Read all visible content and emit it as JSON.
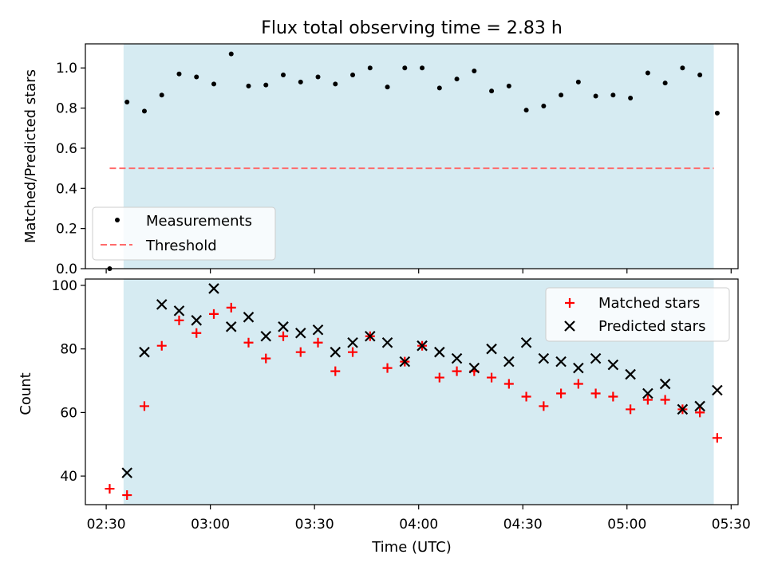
{
  "title": "Flux total observing time = 2.83 h",
  "colors": {
    "band": "#add8e6",
    "threshold": "#ff6b6b",
    "matched": "#ff0000",
    "predicted": "#000000",
    "measurement": "#000000"
  },
  "chart_data": [
    {
      "type": "scatter",
      "ylabel": "Matched/Predicted stars",
      "ylim": [
        0,
        1.12
      ],
      "yticks": [
        "0.0",
        "0.2",
        "0.4",
        "0.6",
        "0.8",
        "1.0"
      ],
      "xlim": [
        "02:24",
        "05:32"
      ],
      "shaded_interval": [
        "02:35",
        "05:25"
      ],
      "legend": {
        "placement": "lower-left",
        "entries": [
          "Measurements",
          "Threshold"
        ]
      },
      "threshold": {
        "name": "Threshold",
        "value": 0.5,
        "x_start": "02:31",
        "x_end": "05:25"
      },
      "series": [
        {
          "name": "Measurements",
          "x": [
            "02:31",
            "02:36",
            "02:41",
            "02:46",
            "02:51",
            "02:56",
            "03:01",
            "03:06",
            "03:11",
            "03:16",
            "03:21",
            "03:26",
            "03:31",
            "03:36",
            "03:41",
            "03:46",
            "03:51",
            "03:56",
            "04:01",
            "04:06",
            "04:11",
            "04:16",
            "04:21",
            "04:26",
            "04:31",
            "04:36",
            "04:41",
            "04:46",
            "04:51",
            "04:56",
            "05:01",
            "05:06",
            "05:11",
            "05:16",
            "05:21",
            "05:26"
          ],
          "values": [
            0.0,
            0.83,
            0.785,
            0.865,
            0.97,
            0.955,
            0.92,
            1.07,
            0.91,
            0.915,
            0.965,
            0.93,
            0.955,
            0.92,
            0.965,
            1.0,
            0.905,
            1.0,
            1.0,
            0.9,
            0.945,
            0.985,
            0.885,
            0.91,
            0.79,
            0.81,
            0.865,
            0.93,
            0.86,
            0.865,
            0.85,
            0.975,
            0.925,
            1.0,
            0.965,
            0.775
          ]
        }
      ]
    },
    {
      "type": "scatter",
      "ylabel": "Count",
      "xlabel": "Time (UTC)",
      "ylim": [
        31,
        102
      ],
      "yticks": [
        "40",
        "60",
        "80",
        "100"
      ],
      "xlim": [
        "02:24",
        "05:32"
      ],
      "xticks": [
        "02:30",
        "03:00",
        "03:30",
        "04:00",
        "04:30",
        "05:00",
        "05:30"
      ],
      "shaded_interval": [
        "02:35",
        "05:25"
      ],
      "legend": {
        "placement": "upper-right",
        "entries": [
          "Matched stars",
          "Predicted stars"
        ]
      },
      "series": [
        {
          "name": "Matched stars",
          "x": [
            "02:31",
            "02:36",
            "02:41",
            "02:46",
            "02:51",
            "02:56",
            "03:01",
            "03:06",
            "03:11",
            "03:16",
            "03:21",
            "03:26",
            "03:31",
            "03:36",
            "03:41",
            "03:46",
            "03:51",
            "03:56",
            "04:01",
            "04:06",
            "04:11",
            "04:16",
            "04:21",
            "04:26",
            "04:31",
            "04:36",
            "04:41",
            "04:46",
            "04:51",
            "04:56",
            "05:01",
            "05:06",
            "05:11",
            "05:16",
            "05:21",
            "05:26"
          ],
          "values": [
            36,
            34,
            62,
            81,
            89,
            85,
            91,
            93,
            82,
            77,
            84,
            79,
            82,
            73,
            79,
            84,
            74,
            76,
            81,
            71,
            73,
            73,
            71,
            69,
            65,
            62,
            66,
            69,
            66,
            65,
            61,
            64,
            64,
            61,
            60,
            52
          ]
        },
        {
          "name": "Predicted stars",
          "x": [
            "02:36",
            "02:41",
            "02:46",
            "02:51",
            "02:56",
            "03:01",
            "03:06",
            "03:11",
            "03:16",
            "03:21",
            "03:26",
            "03:31",
            "03:36",
            "03:41",
            "03:46",
            "03:51",
            "03:56",
            "04:01",
            "04:06",
            "04:11",
            "04:16",
            "04:21",
            "04:26",
            "04:31",
            "04:36",
            "04:41",
            "04:46",
            "04:51",
            "04:56",
            "05:01",
            "05:06",
            "05:11",
            "05:16",
            "05:21",
            "05:26"
          ],
          "values": [
            41,
            79,
            94,
            92,
            89,
            99,
            87,
            90,
            84,
            87,
            85,
            86,
            79,
            82,
            84,
            82,
            76,
            81,
            79,
            77,
            74,
            80,
            76,
            82,
            77,
            76,
            74,
            77,
            75,
            72,
            66,
            69,
            61,
            62,
            67
          ]
        }
      ]
    }
  ]
}
